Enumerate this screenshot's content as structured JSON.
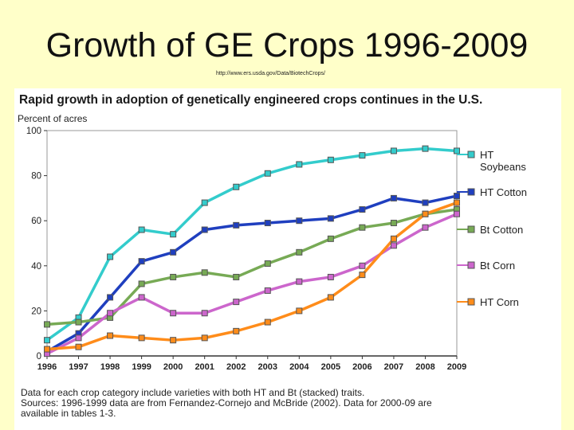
{
  "slide": {
    "title": "Growth of GE Crops 1996-2009",
    "source_url": "http://www.ers.usda.gov/Data/BiotechCrops/"
  },
  "chart_data": {
    "type": "line",
    "title": "Rapid growth in adoption of genetically engineered crops continues in the U.S.",
    "ylabel": "Percent of acres",
    "xlabel": "",
    "ylim": [
      0,
      100
    ],
    "yticks": [
      0,
      20,
      40,
      60,
      80,
      100
    ],
    "categories": [
      "1996",
      "1997",
      "1998",
      "1999",
      "2000",
      "2001",
      "2002",
      "2003",
      "2004",
      "2005",
      "2006",
      "2007",
      "2008",
      "2009"
    ],
    "grid": false,
    "legend_position": "right",
    "series": [
      {
        "name": "HT Soybeans",
        "label_lines": [
          "HT",
          "Soybeans"
        ],
        "color": "#33cccc",
        "values": [
          7,
          17,
          44,
          56,
          54,
          68,
          75,
          81,
          85,
          87,
          89,
          91,
          92,
          91
        ]
      },
      {
        "name": "HT Cotton",
        "label_lines": [
          "HT Cotton"
        ],
        "color": "#1f3fbf",
        "values": [
          2,
          10,
          26,
          42,
          46,
          56,
          58,
          59,
          60,
          61,
          65,
          70,
          68,
          71
        ]
      },
      {
        "name": "Bt Cotton",
        "label_lines": [
          "Bt Cotton"
        ],
        "color": "#77aa55",
        "values": [
          14,
          15,
          17,
          32,
          35,
          37,
          35,
          41,
          46,
          52,
          57,
          59,
          63,
          65
        ]
      },
      {
        "name": "Bt Corn",
        "label_lines": [
          "Bt Corn"
        ],
        "color": "#cc66cc",
        "values": [
          1,
          8,
          19,
          26,
          19,
          19,
          24,
          29,
          33,
          35,
          40,
          49,
          57,
          63
        ]
      },
      {
        "name": "HT Corn",
        "label_lines": [
          "HT Corn"
        ],
        "color": "#ff8c1a",
        "values": [
          3,
          4,
          9,
          8,
          7,
          8,
          11,
          15,
          20,
          26,
          36,
          52,
          63,
          68
        ]
      }
    ],
    "footnote": [
      "Data for each crop category include varieties with both HT and Bt (stacked) traits.",
      "Sources: 1996-1999 data are from Fernandez-Cornejo and McBride (2002). Data for 2000-09 are",
      "available in tables 1-3."
    ]
  }
}
